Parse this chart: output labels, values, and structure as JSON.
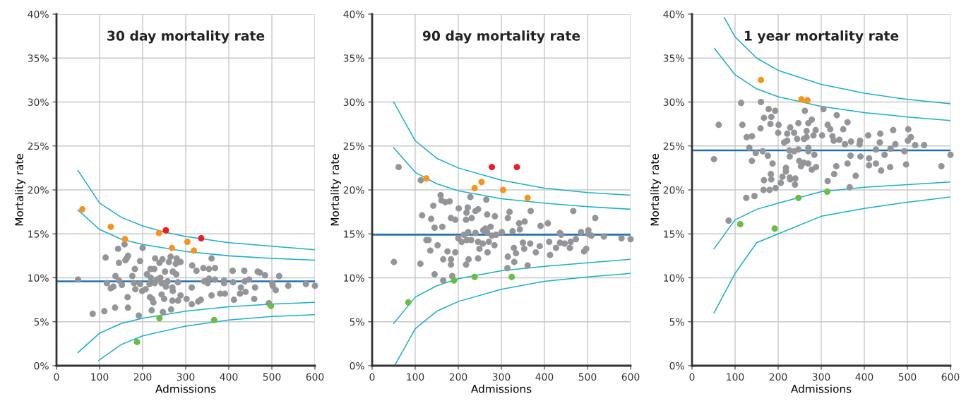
{
  "chart_data": [
    {
      "type": "scatter",
      "title": "30 day mortality rate",
      "xlabel": "Admissions",
      "ylabel": "Mortality rate",
      "xlim": [
        0,
        600
      ],
      "xticks": [
        0,
        100,
        200,
        300,
        400,
        500,
        600
      ],
      "ylim": [
        0,
        40
      ],
      "yticks": [
        {
          "value": 0,
          "label": "0%"
        },
        {
          "value": 5,
          "label": "5%"
        },
        {
          "value": 10,
          "label": "10%"
        },
        {
          "value": 15,
          "label": "15%"
        },
        {
          "value": 20,
          "label": "20%"
        },
        {
          "value": 25,
          "label": "25%"
        },
        {
          "value": 30,
          "label": "30%"
        },
        {
          "value": 35,
          "label": "35%"
        },
        {
          "value": 40,
          "label": "40%"
        }
      ],
      "grid": true,
      "legend": false,
      "marker": "circle",
      "ref_lines": [
        {
          "axis": "y",
          "value": 9.6,
          "color": "#1f6fb4"
        }
      ],
      "series": [
        {
          "type": "line",
          "color": "#1ab0c8",
          "x": [
            50,
            100,
            150,
            200,
            250,
            300,
            400,
            500,
            600
          ],
          "marker": "none",
          "values": [
            22.2,
            18.5,
            16.9,
            15.9,
            15.2,
            14.7,
            14.0,
            13.6,
            13.2
          ]
        },
        {
          "type": "line",
          "color": "#1ab0c8",
          "x": [
            50,
            100,
            150,
            200,
            300,
            400,
            500,
            600
          ],
          "marker": "none",
          "values": [
            17.7,
            15.5,
            14.4,
            13.8,
            13.0,
            12.5,
            12.2,
            12.0
          ]
        },
        {
          "type": "line",
          "color": "#1ab0c8",
          "x": [
            50,
            100,
            150,
            200,
            300,
            400,
            500,
            600
          ],
          "marker": "none",
          "values": [
            1.5,
            3.7,
            4.8,
            5.4,
            6.2,
            6.7,
            7.0,
            7.2
          ]
        },
        {
          "type": "line",
          "color": "#1ab0c8",
          "x": [
            98,
            150,
            200,
            300,
            400,
            500,
            600
          ],
          "marker": "none",
          "values": [
            0.6,
            2.4,
            3.4,
            4.5,
            5.2,
            5.6,
            5.8
          ]
        },
        {
          "color": "#939598",
          "x": [
            50,
            84,
            111,
            114,
            136,
            166,
            143,
            158,
            200,
            145,
            160,
            166,
            163,
            194,
            182,
            176,
            137,
            145,
            117,
            126,
            132,
            152,
            165,
            180,
            183,
            194,
            199,
            207,
            191,
            210,
            218,
            227,
            229,
            239,
            246,
            265,
            261,
            279,
            277,
            288,
            252,
            270,
            278,
            219,
            233,
            241,
            216,
            228,
            244,
            258,
            254,
            269,
            282,
            270,
            217,
            225,
            222,
            244,
            250,
            269,
            282,
            288,
            221,
            247,
            266,
            302,
            314,
            329,
            335,
            314,
            315,
            325,
            341,
            354,
            368,
            360,
            343,
            351,
            354,
            368,
            389,
            389,
            360,
            380,
            391,
            410,
            409,
            436,
            437,
            447,
            428,
            439,
            426,
            412,
            461,
            459,
            467,
            472,
            484,
            517,
            501,
            502,
            509,
            493,
            538,
            579,
            600
          ],
          "values": [
            9.8,
            5.9,
            6.2,
            12.3,
            6.6,
            6.6,
            13.3,
            13.8,
            13.4,
            11.7,
            12.0,
            12.5,
            12.2,
            11.9,
            11.0,
            10.2,
            10.2,
            9.7,
            9.4,
            8.8,
            9.0,
            9.2,
            7.8,
            9.4,
            8.7,
            9.3,
            8.5,
            8.7,
            5.7,
            10.4,
            11.0,
            11.0,
            12.2,
            11.7,
            12.1,
            12.4,
            11.8,
            12.2,
            11.6,
            11.8,
            10.7,
            10.7,
            10.4,
            10.0,
            9.8,
            10.0,
            9.3,
            9.4,
            9.4,
            9.6,
            9.0,
            8.9,
            9.5,
            8.5,
            7.8,
            7.2,
            7.6,
            8.1,
            7.6,
            7.4,
            7.4,
            8.0,
            6.3,
            6.1,
            6.4,
            7.6,
            7.0,
            7.3,
            7.5,
            8.9,
            11.4,
            10.8,
            11.1,
            11.0,
            11.1,
            12.2,
            9.6,
            9.4,
            9.9,
            9.8,
            9.7,
            9.4,
            8.0,
            8.2,
            8.2,
            9.5,
            10.8,
            10.8,
            9.6,
            9.8,
            8.9,
            8.4,
            8.2,
            7.5,
            8.9,
            7.6,
            10.7,
            10.6,
            10.3,
            10.2,
            9.4,
            9.1,
            8.6,
            7.1,
            9.1,
            9.3,
            9.1
          ]
        },
        {
          "color": "#f7941d",
          "x": [
            60,
            126,
            159,
            238,
            268,
            304,
            319
          ],
          "values": [
            17.8,
            15.8,
            14.4,
            15.1,
            13.4,
            14.1,
            13.1
          ]
        },
        {
          "color": "#ed1c24",
          "x": [
            254,
            336
          ],
          "values": [
            15.4,
            14.5
          ]
        },
        {
          "color": "#6abd45",
          "x": [
            187,
            239,
            366,
            498
          ],
          "values": [
            2.7,
            5.4,
            5.2,
            6.8
          ]
        }
      ]
    },
    {
      "type": "scatter",
      "title": "90 day mortality rate",
      "xlabel": "Admissions",
      "ylabel": "Mortality rate",
      "xlim": [
        0,
        600
      ],
      "xticks": [
        0,
        100,
        200,
        300,
        400,
        500,
        600
      ],
      "ylim": [
        0,
        40
      ],
      "yticks": [
        {
          "value": 0,
          "label": "0%"
        },
        {
          "value": 5,
          "label": "5%"
        },
        {
          "value": 10,
          "label": "10%"
        },
        {
          "value": 15,
          "label": "15%"
        },
        {
          "value": 20,
          "label": "20%"
        },
        {
          "value": 25,
          "label": "25%"
        },
        {
          "value": 30,
          "label": "30%"
        },
        {
          "value": 35,
          "label": "35%"
        },
        {
          "value": 40,
          "label": "40%"
        }
      ],
      "grid": true,
      "legend": false,
      "marker": "circle",
      "ref_lines": [
        {
          "axis": "y",
          "value": 14.9,
          "color": "#1f6fb4"
        }
      ],
      "series": [
        {
          "type": "line",
          "color": "#1ab0c8",
          "x": [
            50,
            100,
            150,
            200,
            300,
            400,
            500,
            600
          ],
          "marker": "none",
          "values": [
            30.0,
            25.6,
            23.6,
            22.5,
            21.1,
            20.2,
            19.7,
            19.4
          ]
        },
        {
          "type": "line",
          "color": "#1ab0c8",
          "x": [
            50,
            100,
            150,
            200,
            300,
            400,
            500,
            600
          ],
          "marker": "none",
          "values": [
            24.8,
            22.0,
            20.7,
            19.9,
            19.0,
            18.5,
            18.1,
            17.8
          ]
        },
        {
          "type": "line",
          "color": "#1ab0c8",
          "x": [
            50,
            100,
            150,
            200,
            300,
            400,
            500,
            600
          ],
          "marker": "none",
          "values": [
            4.8,
            7.8,
            9.1,
            9.9,
            10.8,
            11.3,
            11.7,
            12.1
          ]
        },
        {
          "type": "line",
          "color": "#1ab0c8",
          "x": [
            52,
            100,
            150,
            200,
            300,
            400,
            500,
            600
          ],
          "marker": "none",
          "values": [
            0,
            4.2,
            6.2,
            7.3,
            8.7,
            9.6,
            10.1,
            10.5
          ]
        },
        {
          "color": "#939598",
          "x": [
            61.5,
            113,
            159,
            161,
            170,
            180,
            142,
            228,
            265,
            201,
            222,
            219,
            240,
            246,
            267,
            285,
            319,
            368,
            467,
            518,
            116,
            137,
            183,
            193,
            218,
            231,
            315,
            145,
            163,
            341,
            354,
            391,
            408,
            343,
            326,
            301,
            258,
            275,
            263,
            267,
            288,
            213,
            223,
            240,
            200,
            208,
            220,
            230,
            246,
            257,
            271,
            284,
            249,
            268,
            278,
            126,
            131,
            152,
            135,
            175,
            193,
            165,
            183,
            183,
            224,
            218,
            246,
            50.5,
            112,
            145,
            165,
            186,
            314,
            315,
            330,
            334,
            329,
            350,
            353,
            367,
            380,
            389,
            361,
            411,
            413,
            427,
            436,
            439,
            436,
            447,
            461,
            473,
            459,
            485,
            502,
            502,
            509,
            492,
            497,
            538,
            579,
            600
          ],
          "values": [
            22.6,
            21.1,
            19.4,
            18.8,
            18.6,
            18.7,
            18.2,
            19.2,
            18.9,
            17.9,
            18.0,
            17.4,
            17.6,
            17.8,
            17.2,
            17.0,
            17.5,
            17.6,
            17.6,
            16.8,
            17.1,
            16.7,
            16.8,
            16.6,
            16.6,
            16.8,
            16.8,
            15.7,
            15.8,
            16.2,
            16.4,
            15.9,
            16.2,
            15.5,
            15.3,
            15.2,
            15.4,
            15.8,
            15.6,
            15.2,
            14.9,
            14.9,
            15.2,
            15.1,
            14.5,
            14.1,
            14.3,
            14.3,
            14.1,
            13.9,
            14.1,
            13.7,
            13.3,
            12.9,
            14.8,
            14.3,
            14.3,
            13.7,
            13.1,
            13.0,
            12.9,
            12.1,
            12.1,
            11.5,
            12.1,
            11.5,
            12.2,
            11.8,
            11.6,
            10.4,
            9.7,
            10.2,
            11.1,
            12.4,
            11.8,
            12.8,
            13.4,
            14.0,
            13.3,
            13.9,
            12.9,
            13.6,
            11.4,
            14.1,
            12.6,
            13.4,
            15.1,
            14.9,
            14.0,
            13.9,
            14.1,
            14.4,
            13.4,
            15.2,
            15.4,
            15.0,
            14.8,
            13.0,
            13.3,
            14.7,
            14.5,
            14.4
          ]
        },
        {
          "color": "#f7941d",
          "x": [
            126,
            238,
            254,
            304,
            361
          ],
          "values": [
            21.3,
            20.2,
            20.9,
            20.0,
            19.1
          ]
        },
        {
          "color": "#ed1c24",
          "x": [
            278,
            336
          ],
          "values": [
            22.6,
            22.6
          ]
        },
        {
          "color": "#6abd45",
          "x": [
            84,
            190,
            238,
            324
          ],
          "values": [
            7.2,
            9.7,
            10.1,
            10.1
          ]
        }
      ]
    },
    {
      "type": "scatter",
      "title": "1 year mortality rate",
      "xlabel": "Admissions",
      "ylabel": "Mortality rate",
      "xlim": [
        0,
        600
      ],
      "xticks": [
        0,
        100,
        200,
        300,
        400,
        500,
        600
      ],
      "ylim": [
        0,
        40
      ],
      "yticks": [
        {
          "value": 0,
          "label": "0%"
        },
        {
          "value": 5,
          "label": "5%"
        },
        {
          "value": 10,
          "label": "10%"
        },
        {
          "value": 15,
          "label": "15%"
        },
        {
          "value": 20,
          "label": "20%"
        },
        {
          "value": 25,
          "label": "25%"
        },
        {
          "value": 30,
          "label": "30%"
        },
        {
          "value": 35,
          "label": "35%"
        },
        {
          "value": 40,
          "label": "40%"
        }
      ],
      "grid": true,
      "legend": false,
      "marker": "circle",
      "ref_lines": [
        {
          "axis": "y",
          "value": 24.5,
          "color": "#1f6fb4"
        }
      ],
      "series": [
        {
          "type": "line",
          "color": "#1ab0c8",
          "x": [
            75,
            100,
            150,
            200,
            300,
            400,
            500,
            600
          ],
          "marker": "none",
          "values": [
            39.6,
            37.4,
            35.0,
            33.6,
            32.0,
            31.0,
            30.3,
            29.8
          ]
        },
        {
          "type": "line",
          "color": "#1ab0c8",
          "x": [
            52,
            100,
            150,
            200,
            300,
            400,
            500,
            600
          ],
          "marker": "none",
          "values": [
            36.1,
            33.1,
            31.5,
            30.6,
            29.5,
            28.8,
            28.3,
            27.9
          ]
        },
        {
          "type": "line",
          "color": "#1ab0c8",
          "x": [
            51,
            100,
            151,
            200,
            300,
            400,
            500,
            600
          ],
          "marker": "none",
          "values": [
            13.3,
            16.6,
            17.8,
            18.5,
            19.8,
            20.3,
            20.6,
            20.9
          ]
        },
        {
          "type": "line",
          "color": "#1ab0c8",
          "x": [
            51,
            100,
            150,
            200,
            300,
            400,
            500,
            600
          ],
          "marker": "none",
          "values": [
            6.0,
            10.5,
            14.0,
            15.0,
            17.0,
            17.9,
            18.6,
            19.2
          ]
        },
        {
          "color": "#939598",
          "x": [
            62,
            51,
            114,
            117,
            160,
            178,
            193,
            262,
            305,
            336,
            167,
            184,
            182,
            159,
            201,
            200,
            228,
            247,
            270,
            278,
            266,
            287,
            282,
            237,
            221,
            244,
            260,
            266,
            302,
            315,
            321,
            351,
            361,
            326,
            329,
            342,
            355,
            369,
            390,
            389,
            409,
            437,
            467,
            502,
            508,
            501,
            518,
            539,
            436,
            472,
            461,
            427,
            493,
            447,
            411,
            391,
            368,
            127,
            139,
            133,
            148,
            164,
            176,
            139,
            187,
            214,
            221,
            226,
            237,
            247,
            227,
            270,
            270,
            284,
            249,
            260,
            270,
            278,
            288,
            253,
            218,
            218,
            183,
            335,
            361,
            411,
            427,
            460,
            497,
            579,
            600,
            380,
            330,
            167,
            210,
            227,
            240,
            315,
            439,
            184,
            206,
            228,
            239,
            166,
            180,
            194,
            126,
            145,
            85,
            366
          ],
          "values": [
            27.4,
            23.5,
            29.9,
            27.4,
            30.0,
            29.2,
            29.0,
            29.0,
            29.2,
            28.5,
            28.2,
            28.3,
            27.5,
            27.0,
            27.4,
            26.5,
            27.1,
            27.6,
            27.6,
            28.0,
            26.7,
            26.8,
            26.2,
            26.5,
            26.4,
            25.8,
            25.8,
            26.0,
            26.2,
            27.4,
            26.9,
            26.9,
            27.7,
            26.1,
            25.6,
            25.7,
            25.2,
            25.5,
            25.6,
            25.2,
            26.2,
            26.4,
            26.8,
            26.9,
            26.0,
            25.6,
            25.1,
            25.1,
            25.4,
            25.2,
            24.7,
            24.6,
            24.4,
            24.0,
            23.6,
            23.8,
            23.9,
            26.0,
            26.1,
            24.8,
            24.2,
            24.4,
            23.9,
            23.3,
            23.0,
            25.4,
            25.6,
            24.5,
            24.4,
            24.6,
            23.8,
            24.8,
            24.4,
            24.0,
            23.3,
            23.1,
            23.0,
            22.3,
            22.6,
            22.7,
            22.5,
            22.1,
            21.8,
            22.7,
            23.0,
            22.8,
            23.0,
            22.6,
            22.9,
            22.7,
            24.0,
            21.6,
            21.8,
            21.1,
            21.5,
            21.4,
            21.3,
            21.0,
            22.2,
            21.2,
            20.8,
            21.2,
            20.6,
            20.0,
            20.0,
            20.2,
            19.1,
            19.3,
            16.5,
            20.3
          ]
        },
        {
          "color": "#f7941d",
          "x": [
            160,
            254,
            268
          ],
          "values": [
            32.5,
            30.3,
            30.2
          ]
        },
        {
          "color": "#6abd45",
          "x": [
            112,
            192,
            247,
            314
          ],
          "values": [
            16.1,
            15.6,
            19.1,
            19.8
          ]
        }
      ]
    }
  ]
}
